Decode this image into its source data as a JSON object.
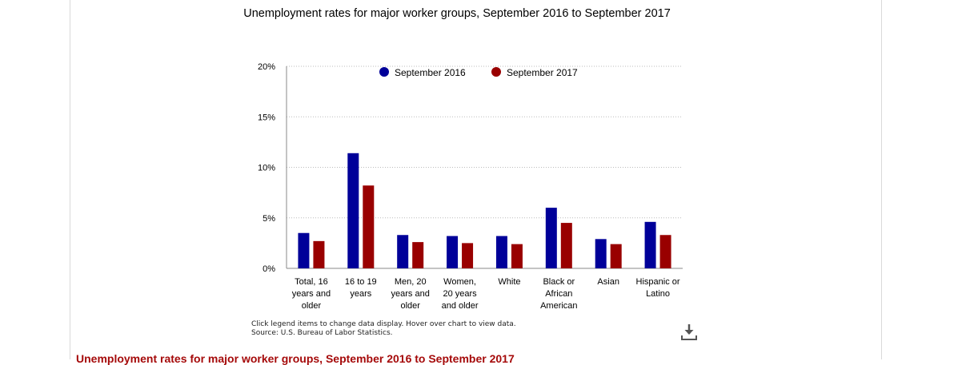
{
  "title": "Unemployment rates for major worker groups, September 2016 to September 2017",
  "footnotes": {
    "line1": "Click legend items to change data display. Hover over chart to view data.",
    "line2": "Source: U.S. Bureau of Labor Statistics."
  },
  "bottom_heading": "Unemployment rates for major worker groups, September 2016 to September 2017",
  "colors": {
    "series1": "#000099",
    "series2": "#990000",
    "grid": "#bbbbbb",
    "axis": "#888888"
  },
  "icons": {
    "download": "download-icon"
  },
  "chart_data": {
    "type": "bar",
    "title": "Unemployment rates for major worker groups, September 2016 to September 2017",
    "categories": [
      [
        "Total, 16",
        "years and",
        "older"
      ],
      [
        "16 to 19",
        "years"
      ],
      [
        "Men, 20",
        "years and",
        "older"
      ],
      [
        "Women,",
        "20 years",
        "and older"
      ],
      [
        "White"
      ],
      [
        "Black or",
        "African",
        "American"
      ],
      [
        "Asian"
      ],
      [
        "Hispanic or",
        "Latino"
      ]
    ],
    "series": [
      {
        "name": "September 2016",
        "values": [
          3.5,
          11.4,
          3.3,
          3.2,
          3.2,
          6.0,
          2.9,
          4.6
        ]
      },
      {
        "name": "September 2017",
        "values": [
          2.7,
          8.2,
          2.6,
          2.5,
          2.4,
          4.5,
          2.4,
          3.3
        ]
      }
    ],
    "yticks": [
      "0%",
      "5%",
      "10%",
      "15%",
      "20%"
    ],
    "ylim": [
      0,
      20
    ],
    "grid": true,
    "legend_position": "top"
  }
}
